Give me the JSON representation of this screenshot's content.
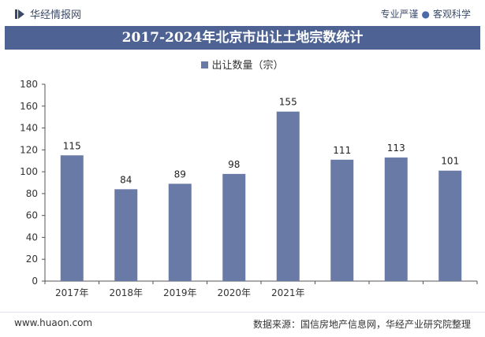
{
  "header": {
    "brand": "华经情报网",
    "slogan_left": "专业严谨",
    "slogan_right": "客观科学"
  },
  "footer": {
    "url": "www.huaon.com",
    "source": "数据来源：国信房地产信息网，华经产业研究院整理"
  },
  "colors": {
    "bar": "#6a7aa6",
    "title_bg": "#4e6393"
  },
  "chart_data": {
    "type": "bar",
    "title": "2017-2024年北京市出让土地宗数统计",
    "categories": [
      "2017年",
      "2018年",
      "2019年",
      "2020年",
      "2021年",
      "",
      "",
      ""
    ],
    "series": [
      {
        "name": "出让数量（宗）",
        "values": [
          115,
          84,
          89,
          98,
          155,
          111,
          113,
          101
        ]
      }
    ],
    "ylim": [
      0,
      180
    ],
    "yticks": [
      0,
      20,
      40,
      60,
      80,
      100,
      120,
      140,
      160,
      180
    ],
    "grid": false,
    "legend_position": "top-center"
  }
}
